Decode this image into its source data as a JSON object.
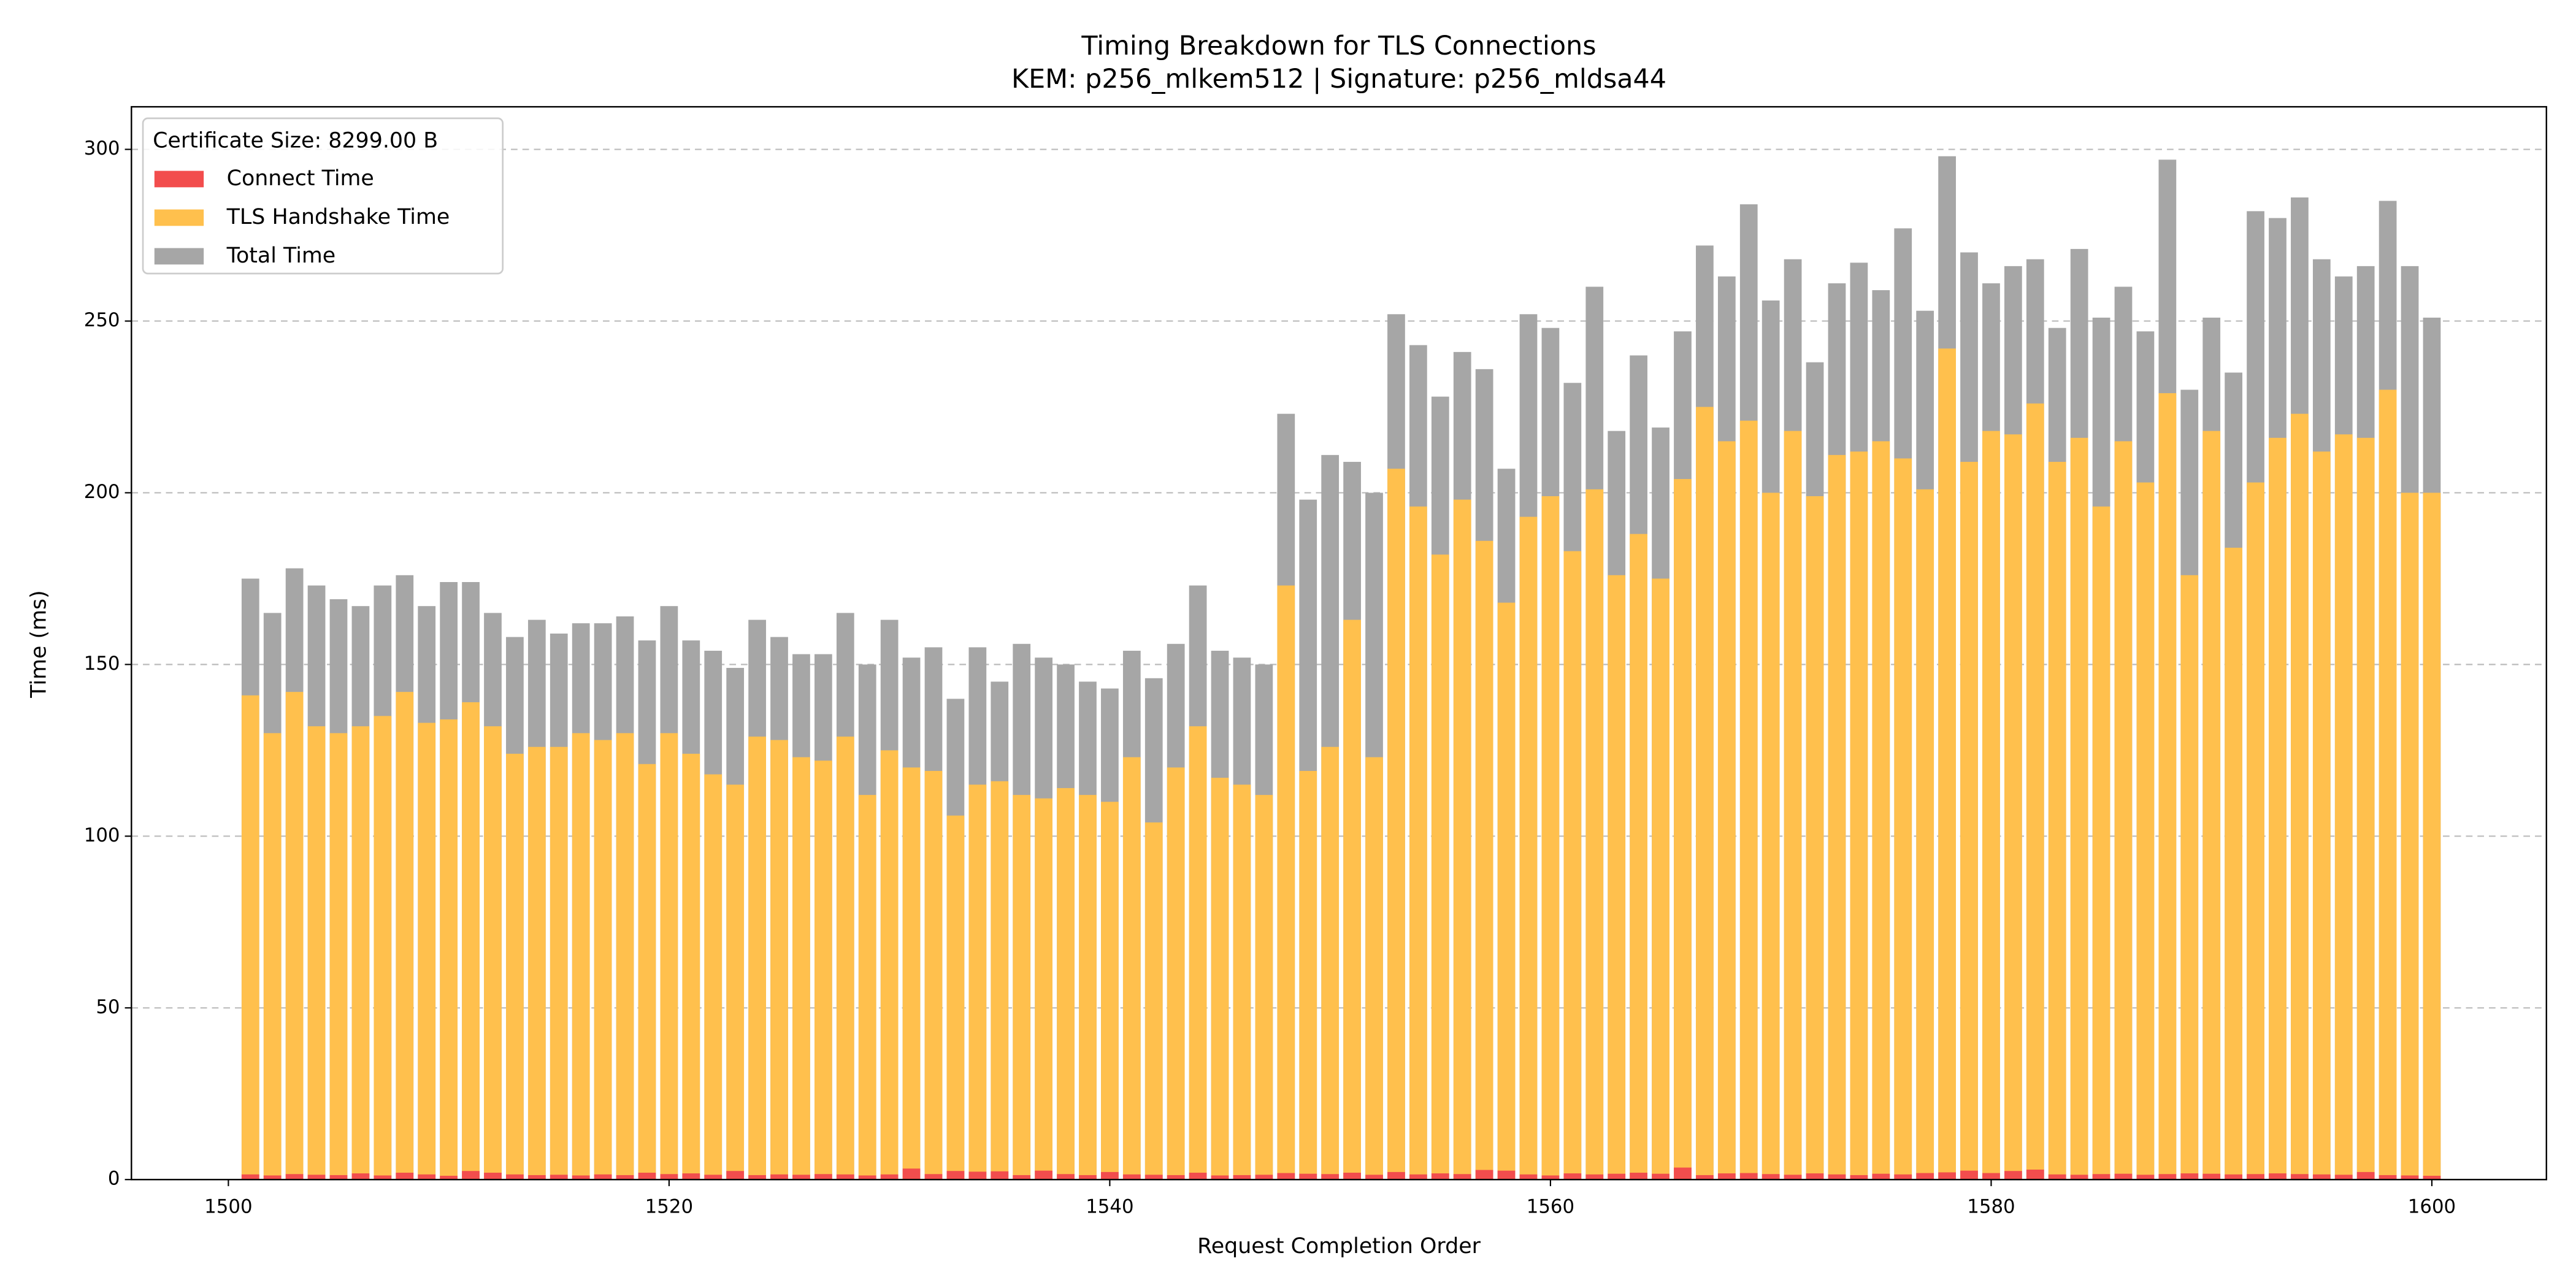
{
  "chart_data": {
    "type": "bar",
    "title": "Timing Breakdown for TLS Connections",
    "subtitle": "KEM: p256_mlkem512 | Signature: p256_mldsa44",
    "x_label": "Request Completion Order",
    "y_label": "Time (ms)",
    "legend_title": "Certificate Size: 8299.00 B",
    "legend_position": "upper left",
    "grid": true,
    "x": [
      1501,
      1502,
      1503,
      1504,
      1505,
      1506,
      1507,
      1508,
      1509,
      1510,
      1511,
      1512,
      1513,
      1514,
      1515,
      1516,
      1517,
      1518,
      1519,
      1520,
      1521,
      1522,
      1523,
      1524,
      1525,
      1526,
      1527,
      1528,
      1529,
      1530,
      1531,
      1532,
      1533,
      1534,
      1535,
      1536,
      1537,
      1538,
      1539,
      1540,
      1541,
      1542,
      1543,
      1544,
      1545,
      1546,
      1547,
      1548,
      1549,
      1550,
      1551,
      1552,
      1553,
      1554,
      1555,
      1556,
      1557,
      1558,
      1559,
      1560,
      1561,
      1562,
      1563,
      1564,
      1565,
      1566,
      1567,
      1568,
      1569,
      1570,
      1571,
      1572,
      1573,
      1574,
      1575,
      1576,
      1577,
      1578,
      1579,
      1580,
      1581,
      1582,
      1583,
      1584,
      1585,
      1586,
      1587,
      1588,
      1589,
      1590,
      1591,
      1592,
      1593,
      1594,
      1595,
      1596,
      1597,
      1598,
      1599,
      1600
    ],
    "series": [
      {
        "name": "Connect Time",
        "color": "#f24d4d",
        "values": [
          1.5,
          1.2,
          1.6,
          1.4,
          1.3,
          1.8,
          1.2,
          2.0,
          1.5,
          1.1,
          2.5,
          2.0,
          1.5,
          1.3,
          1.4,
          1.2,
          1.5,
          1.3,
          2.0,
          1.6,
          1.8,
          1.4,
          2.5,
          1.3,
          1.5,
          1.4,
          1.6,
          1.5,
          1.2,
          1.5,
          3.2,
          1.6,
          2.5,
          2.3,
          2.4,
          1.3,
          2.6,
          1.6,
          1.3,
          2.2,
          1.5,
          1.4,
          1.3,
          2.0,
          1.2,
          1.3,
          1.4,
          1.9,
          1.7,
          1.6,
          2.0,
          1.4,
          2.2,
          1.5,
          1.8,
          1.6,
          2.8,
          2.6,
          1.5,
          1.2,
          1.8,
          1.5,
          1.7,
          2.0,
          1.7,
          3.5,
          1.3,
          1.8,
          1.9,
          1.6,
          1.4,
          1.8,
          1.5,
          1.3,
          1.7,
          1.5,
          1.9,
          2.1,
          2.6,
          1.9,
          2.5,
          2.9,
          1.5,
          1.4,
          1.6,
          1.7,
          1.4,
          1.6,
          1.8,
          1.7,
          1.5,
          1.6,
          1.8,
          1.6,
          1.5,
          1.4,
          2.2,
          1.3,
          1.2,
          1.1
        ]
      },
      {
        "name": "TLS Handshake Time",
        "color": "#ffc04d",
        "values": [
          141,
          130,
          142,
          132,
          130,
          132,
          135,
          142,
          133,
          134,
          139,
          132,
          124,
          126,
          126,
          130,
          128,
          130,
          121,
          130,
          124,
          118,
          115,
          129,
          128,
          123,
          122,
          129,
          112,
          125,
          120,
          119,
          106,
          115,
          116,
          112,
          111,
          114,
          112,
          110,
          123,
          104,
          120,
          132,
          117,
          115,
          112,
          173,
          119,
          126,
          163,
          123,
          207,
          196,
          182,
          198,
          186,
          168,
          193,
          199,
          183,
          201,
          176,
          188,
          175,
          204,
          225,
          215,
          221,
          200,
          218,
          199,
          211,
          212,
          215,
          210,
          201,
          242,
          209,
          218,
          217,
          226,
          209,
          216,
          196,
          215,
          203,
          229,
          176,
          218,
          184,
          203,
          216,
          223,
          212,
          217,
          216,
          230,
          200,
          200
        ]
      },
      {
        "name": "Total Time",
        "color": "#a6a6a6",
        "values": [
          175,
          165,
          178,
          173,
          169,
          167,
          173,
          176,
          167,
          174,
          174,
          165,
          158,
          163,
          159,
          162,
          162,
          164,
          157,
          167,
          157,
          154,
          149,
          163,
          158,
          153,
          153,
          165,
          150,
          163,
          152,
          155,
          140,
          155,
          145,
          156,
          152,
          150,
          145,
          143,
          154,
          146,
          156,
          173,
          154,
          152,
          150,
          223,
          198,
          211,
          209,
          200,
          252,
          243,
          228,
          241,
          236,
          207,
          252,
          248,
          232,
          260,
          218,
          240,
          219,
          247,
          272,
          263,
          284,
          256,
          268,
          238,
          261,
          267,
          259,
          277,
          253,
          298,
          270,
          261,
          266,
          268,
          248,
          271,
          251,
          260,
          247,
          297,
          230,
          251,
          235,
          282,
          280,
          286,
          268,
          263,
          266,
          285,
          266,
          251
        ]
      }
    ],
    "xlim": [
      1495.6,
      1605.2
    ],
    "xticks": [
      1500,
      1520,
      1540,
      1560,
      1580,
      1600
    ],
    "ylim": [
      0,
      312.4
    ],
    "yticks": [
      0,
      50,
      100,
      150,
      200,
      250,
      300
    ]
  }
}
